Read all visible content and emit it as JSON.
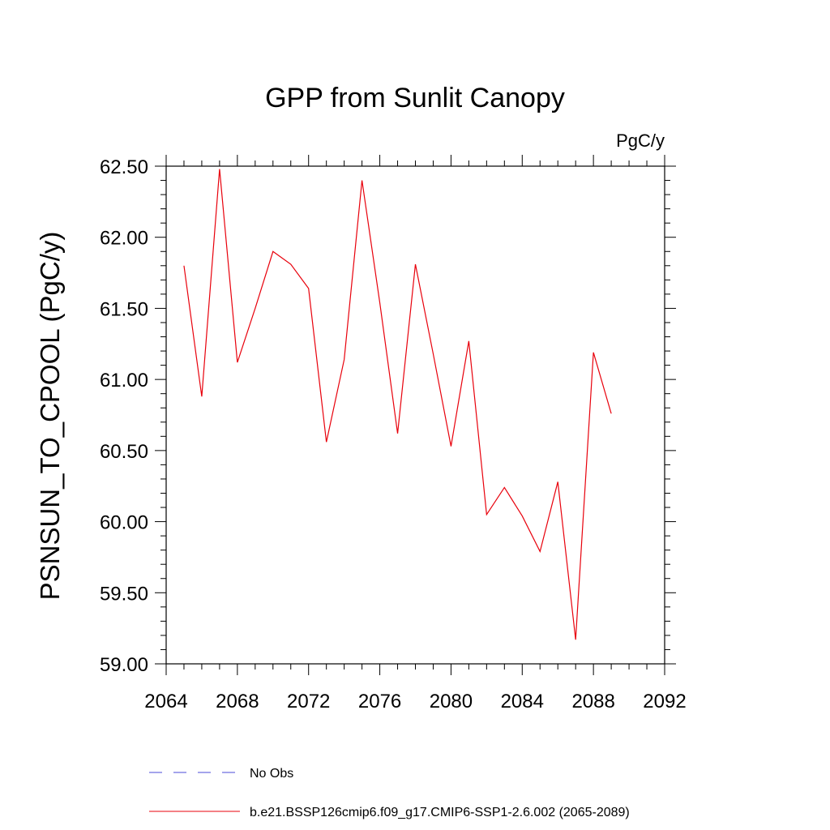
{
  "chart_data": {
    "type": "line",
    "title": "GPP from Sunlit Canopy",
    "units": "PgC/y",
    "xlabel": "",
    "ylabel": "PSNSUN_TO_CPOOL  (PgC/y)",
    "xlim": [
      2064,
      2092
    ],
    "ylim": [
      59.0,
      62.5
    ],
    "x_ticks": [
      2064,
      2068,
      2072,
      2076,
      2080,
      2084,
      2088,
      2092
    ],
    "x_tick_labels": [
      "2064",
      "2068",
      "2072",
      "2076",
      "2080",
      "2084",
      "2088",
      "2092"
    ],
    "y_ticks": [
      59.0,
      59.5,
      60.0,
      60.5,
      61.0,
      61.5,
      62.0,
      62.5
    ],
    "y_tick_labels": [
      "59.00",
      "59.50",
      "60.00",
      "60.50",
      "61.00",
      "61.50",
      "62.00",
      "62.50"
    ],
    "grid": false,
    "legend_position": "bottom",
    "series": [
      {
        "name": "b.e21.BSSP126cmip6.f09_g17.CMIP6-SSP1-2.6.002 (2065-2089)",
        "color": "#e8000b",
        "style": "solid",
        "x": [
          2065,
          2066,
          2067,
          2068,
          2069,
          2070,
          2071,
          2072,
          2073,
          2074,
          2075,
          2076,
          2077,
          2078,
          2079,
          2080,
          2081,
          2082,
          2083,
          2084,
          2085,
          2086,
          2087,
          2088,
          2089
        ],
        "values": [
          61.8,
          60.88,
          62.48,
          61.12,
          61.5,
          61.9,
          61.81,
          61.64,
          60.56,
          61.14,
          62.4,
          61.54,
          60.62,
          61.81,
          61.18,
          60.53,
          61.27,
          60.05,
          60.24,
          60.04,
          59.79,
          60.28,
          59.17,
          61.19,
          60.76
        ]
      },
      {
        "name": "No Obs",
        "color": "#4a4ad8",
        "style": "dashed",
        "x": [],
        "values": []
      }
    ]
  }
}
